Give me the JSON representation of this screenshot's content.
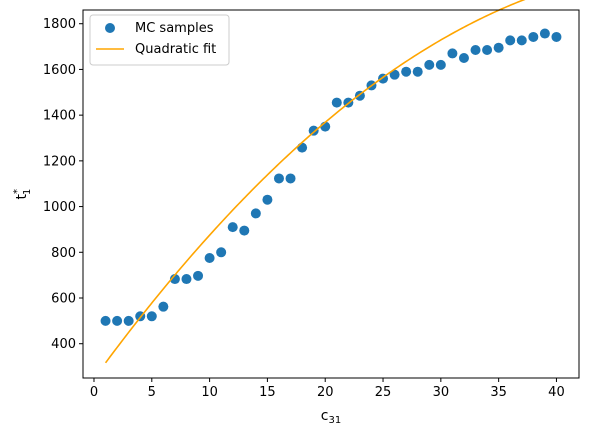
{
  "chart_data": {
    "type": "scatter",
    "xlabel": "c",
    "xlabel_sub": "31",
    "ylabel": "t",
    "ylabel_sup": "*",
    "ylabel_sub": "1",
    "xlim": [
      -0.95,
      41.95
    ],
    "ylim": [
      250,
      1860
    ],
    "xticks": [
      0,
      5,
      10,
      15,
      20,
      25,
      30,
      35,
      40
    ],
    "yticks": [
      400,
      600,
      800,
      1000,
      1200,
      1400,
      1600,
      1800
    ],
    "grid": false,
    "legend_position": "top-left",
    "colors": {
      "scatter": "#1f77b4",
      "fit": "#ffa500"
    },
    "series": [
      {
        "name": "MC samples",
        "kind": "scatter",
        "x": [
          1,
          2,
          3,
          4,
          5,
          6,
          7,
          8,
          9,
          10,
          11,
          12,
          13,
          14,
          15,
          16,
          17,
          18,
          19,
          20,
          21,
          22,
          23,
          24,
          25,
          26,
          27,
          28,
          29,
          30,
          31,
          32,
          33,
          34,
          35,
          36,
          37,
          38,
          39,
          40
        ],
        "y": [
          500,
          500,
          500,
          520,
          520,
          562,
          683,
          683,
          697,
          775,
          800,
          910,
          895,
          970,
          1030,
          1123,
          1123,
          1258,
          1332,
          1350,
          1455,
          1455,
          1485,
          1530,
          1560,
          1577,
          1590,
          1590,
          1620,
          1620,
          1670,
          1650,
          1685,
          1685,
          1695,
          1727,
          1727,
          1742,
          1757,
          1742
        ]
      },
      {
        "name": "Quadratic fit",
        "kind": "line",
        "quadratic": {
          "a": -0.6684,
          "b": 69.425,
          "c": 247.6
        },
        "x_range": [
          1,
          40
        ]
      }
    ]
  }
}
